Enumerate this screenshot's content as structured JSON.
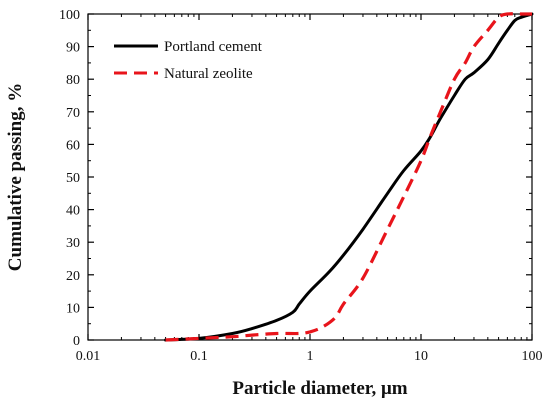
{
  "chart_data": {
    "type": "line",
    "xlabel": "Particle diameter, μm",
    "ylabel": "Cumulative passing, %",
    "xscale": "log",
    "xlim": [
      0.01,
      100
    ],
    "ylim": [
      0,
      100
    ],
    "x_ticks": [
      0.01,
      0.1,
      1,
      10,
      100
    ],
    "x_tick_labels": [
      "0.01",
      "0.1",
      "1",
      "10",
      "100"
    ],
    "y_ticks": [
      0,
      10,
      20,
      30,
      40,
      50,
      60,
      70,
      80,
      90,
      100
    ],
    "y_tick_labels": [
      "0",
      "10",
      "20",
      "30",
      "40",
      "50",
      "60",
      "70",
      "80",
      "90",
      "100"
    ],
    "grid": false,
    "legend_position": "top-left",
    "series": [
      {
        "name": "Portland cement",
        "color": "#000000",
        "dash": "solid",
        "x": [
          0.05,
          0.1,
          0.2,
          0.3,
          0.5,
          0.7,
          0.8,
          1,
          1.5,
          2,
          3,
          5,
          7,
          10,
          12,
          15,
          20,
          25,
          30,
          40,
          50,
          60,
          70,
          80,
          100
        ],
        "y": [
          0,
          0.5,
          2,
          3.5,
          6,
          8.5,
          11,
          15,
          21,
          26,
          34,
          45,
          52,
          58,
          62,
          68,
          75,
          80,
          82,
          86,
          91,
          95,
          98,
          99,
          100
        ]
      },
      {
        "name": "Natural zeolite",
        "color": "#e8141b",
        "dash": "dashed",
        "x": [
          0.05,
          0.1,
          0.2,
          0.3,
          0.5,
          0.8,
          1,
          1.3,
          1.7,
          2,
          3,
          5,
          7,
          10,
          12,
          15,
          20,
          25,
          30,
          40,
          50,
          60,
          80,
          100
        ],
        "y": [
          0,
          0.5,
          1,
          1.5,
          2,
          2,
          2.5,
          4,
          7,
          11,
          19,
          34,
          44,
          55,
          62,
          70,
          80,
          85,
          90,
          95,
          99,
          100,
          100,
          100
        ]
      }
    ]
  }
}
